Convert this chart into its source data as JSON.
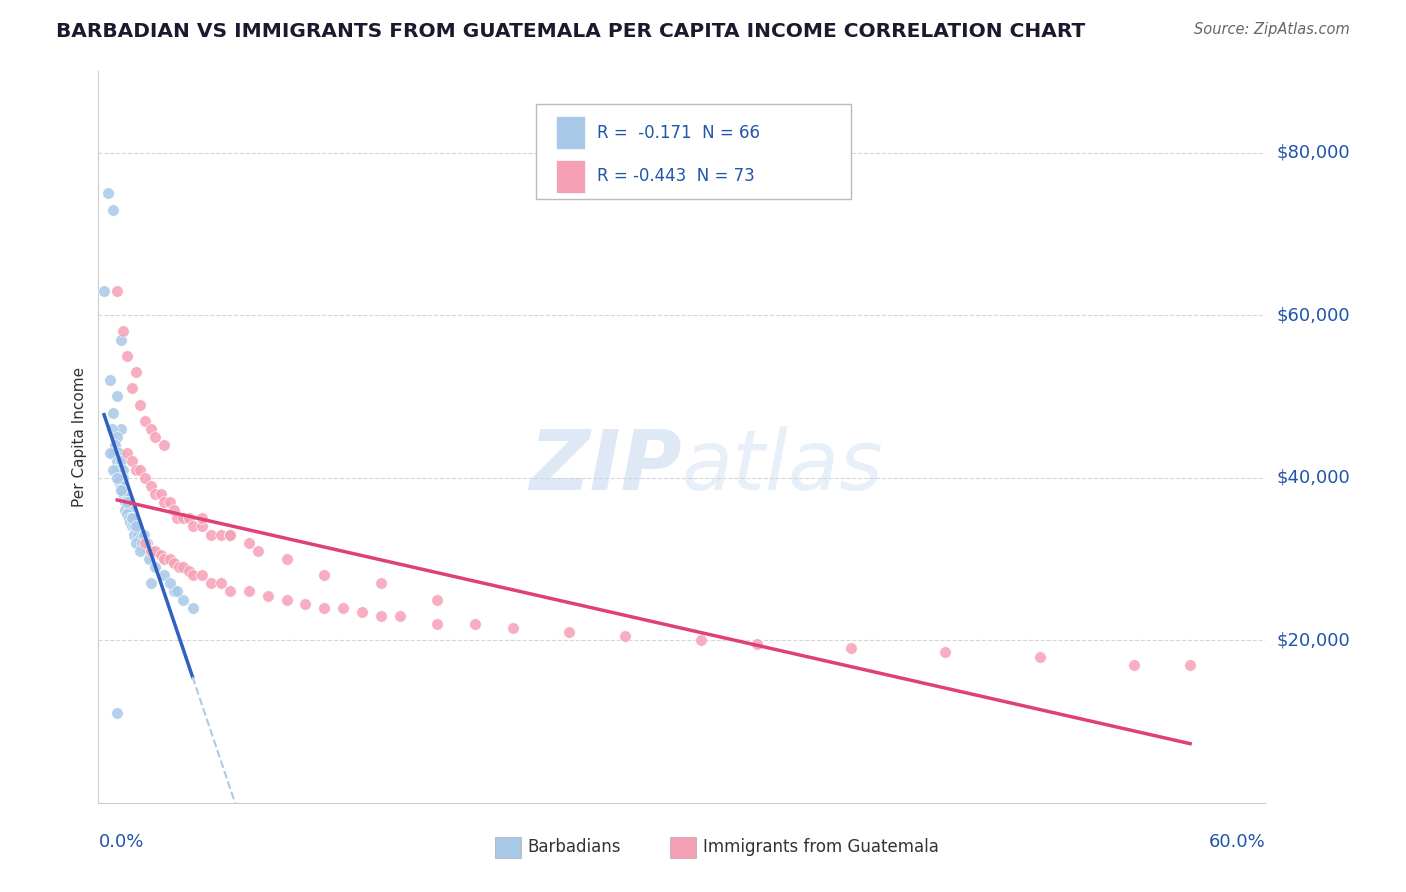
{
  "title": "BARBADIAN VS IMMIGRANTS FROM GUATEMALA PER CAPITA INCOME CORRELATION CHART",
  "source": "Source: ZipAtlas.com",
  "ylabel": "Per Capita Income",
  "y_ticks": [
    20000,
    40000,
    60000,
    80000
  ],
  "y_tick_labels": [
    "$20,000",
    "$40,000",
    "$60,000",
    "$80,000"
  ],
  "watermark_zip": "ZIP",
  "watermark_atlas": "atlas",
  "legend_r1_label": "R =  -0.171",
  "legend_r1_n": "N = 66",
  "legend_r2_label": "R = -0.443",
  "legend_r2_n": "N = 73",
  "barbadian_color": "#a8c8e8",
  "guatemalan_color": "#f5a0b5",
  "trend_blue_color": "#3060c0",
  "trend_pink_color": "#e0407a",
  "trend_dashed_color": "#b0c8e8",
  "barbadian_scatter_x": [
    0.005,
    0.008,
    0.003,
    0.012,
    0.006,
    0.01,
    0.008,
    0.012,
    0.007,
    0.01,
    0.009,
    0.011,
    0.008,
    0.01,
    0.012,
    0.013,
    0.01,
    0.011,
    0.012,
    0.013,
    0.011,
    0.012,
    0.013,
    0.012,
    0.014,
    0.013,
    0.015,
    0.014,
    0.016,
    0.015,
    0.014,
    0.016,
    0.015,
    0.017,
    0.016,
    0.018,
    0.017,
    0.018,
    0.019,
    0.02,
    0.019,
    0.021,
    0.022,
    0.02,
    0.023,
    0.025,
    0.022,
    0.027,
    0.03,
    0.035,
    0.028,
    0.04,
    0.045,
    0.05,
    0.038,
    0.042,
    0.006,
    0.008,
    0.01,
    0.012,
    0.015,
    0.018,
    0.02,
    0.024,
    0.026,
    0.01
  ],
  "barbadian_scatter_y": [
    75000,
    73000,
    63000,
    57000,
    52000,
    50000,
    48000,
    46000,
    46000,
    45000,
    44000,
    43000,
    43000,
    42000,
    42000,
    41000,
    41000,
    40500,
    40000,
    40000,
    39500,
    39000,
    39000,
    38500,
    38000,
    38000,
    37500,
    37000,
    37000,
    36500,
    36000,
    36000,
    35500,
    35000,
    35000,
    35000,
    34500,
    34000,
    34000,
    33500,
    33000,
    33000,
    32500,
    32000,
    32000,
    31500,
    31000,
    30000,
    29000,
    28000,
    27000,
    26000,
    25000,
    24000,
    27000,
    26000,
    43000,
    41000,
    40000,
    38500,
    37000,
    35000,
    34000,
    33000,
    32000,
    11000
  ],
  "guatemalan_scatter_x": [
    0.01,
    0.013,
    0.015,
    0.02,
    0.018,
    0.022,
    0.025,
    0.028,
    0.03,
    0.035,
    0.015,
    0.018,
    0.02,
    0.022,
    0.025,
    0.028,
    0.03,
    0.033,
    0.035,
    0.038,
    0.04,
    0.042,
    0.045,
    0.048,
    0.05,
    0.055,
    0.06,
    0.065,
    0.07,
    0.08,
    0.025,
    0.028,
    0.03,
    0.033,
    0.035,
    0.038,
    0.04,
    0.043,
    0.045,
    0.048,
    0.05,
    0.055,
    0.06,
    0.065,
    0.07,
    0.08,
    0.09,
    0.1,
    0.11,
    0.12,
    0.13,
    0.14,
    0.15,
    0.16,
    0.18,
    0.2,
    0.22,
    0.25,
    0.28,
    0.32,
    0.35,
    0.4,
    0.45,
    0.5,
    0.55,
    0.58,
    0.055,
    0.07,
    0.085,
    0.1,
    0.12,
    0.15,
    0.18
  ],
  "guatemalan_scatter_y": [
    63000,
    58000,
    55000,
    53000,
    51000,
    49000,
    47000,
    46000,
    45000,
    44000,
    43000,
    42000,
    41000,
    41000,
    40000,
    39000,
    38000,
    38000,
    37000,
    37000,
    36000,
    35000,
    35000,
    35000,
    34000,
    34000,
    33000,
    33000,
    33000,
    32000,
    32000,
    31000,
    31000,
    30500,
    30000,
    30000,
    29500,
    29000,
    29000,
    28500,
    28000,
    28000,
    27000,
    27000,
    26000,
    26000,
    25500,
    25000,
    24500,
    24000,
    24000,
    23500,
    23000,
    23000,
    22000,
    22000,
    21500,
    21000,
    20500,
    20000,
    19500,
    19000,
    18500,
    18000,
    17000,
    17000,
    35000,
    33000,
    31000,
    30000,
    28000,
    27000,
    25000
  ],
  "xlim": [
    0.0,
    0.62
  ],
  "ylim": [
    0,
    90000
  ],
  "background_color": "#ffffff",
  "grid_color": "#cccccc",
  "title_color": "#1a1a2e",
  "source_color": "#666666",
  "right_label_color": "#2255aa",
  "bottom_label_color": "#2255aa",
  "watermark_color": "#ccddf0",
  "legend_text_color": "#2255aa"
}
